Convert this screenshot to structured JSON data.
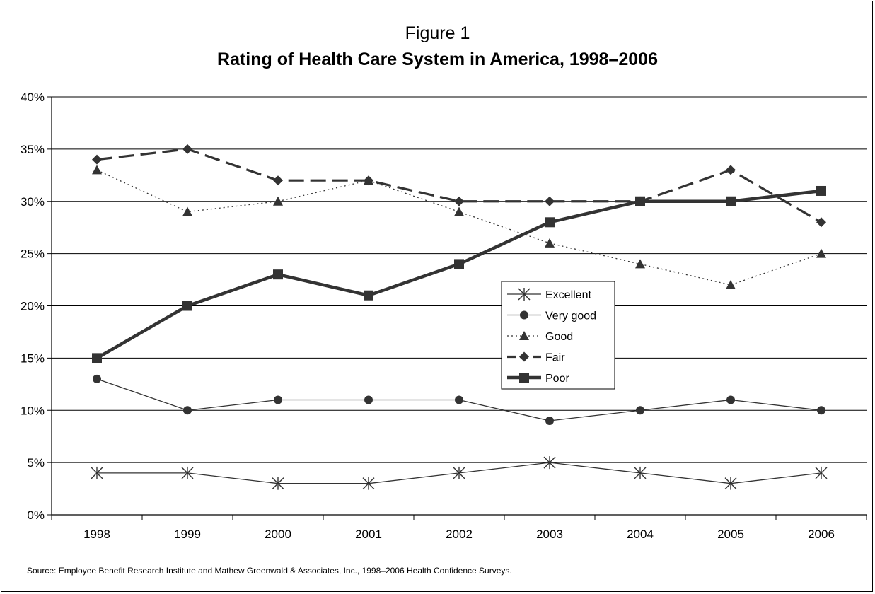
{
  "figure": {
    "number_label": "Figure 1",
    "title": "Rating of Health Care System in America, 1998–2006",
    "source": "Source: Employee Benefit Research Institute and Mathew Greenwald & Associates, Inc., 1998–2006 Health Confidence Surveys."
  },
  "chart_data": {
    "type": "line",
    "title": "Rating of Health Care System in America, 1998–2006",
    "x": [
      "1998",
      "1999",
      "2000",
      "2001",
      "2002",
      "2003",
      "2004",
      "2005",
      "2006"
    ],
    "ylim": [
      0,
      40
    ],
    "y_ticks": [
      "0%",
      "5%",
      "10%",
      "15%",
      "20%",
      "25%",
      "30%",
      "35%",
      "40%"
    ],
    "y_unit": "%",
    "grid": "horizontal",
    "legend_position": "center-right",
    "series": [
      {
        "name": "Excellent",
        "values": [
          4,
          4,
          3,
          3,
          4,
          5,
          4,
          3,
          4
        ],
        "marker": "asterisk",
        "line": "thin-solid",
        "color": "#333333"
      },
      {
        "name": "Very good",
        "values": [
          13,
          10,
          11,
          11,
          11,
          9,
          10,
          11,
          10
        ],
        "marker": "circle",
        "line": "thin-solid",
        "color": "#333333"
      },
      {
        "name": "Good",
        "values": [
          33,
          29,
          30,
          32,
          29,
          26,
          24,
          22,
          25
        ],
        "marker": "triangle",
        "line": "dotted",
        "color": "#333333"
      },
      {
        "name": "Fair",
        "values": [
          34,
          35,
          32,
          32,
          30,
          30,
          30,
          33,
          28
        ],
        "marker": "diamond",
        "line": "dashed",
        "color": "#333333"
      },
      {
        "name": "Poor",
        "values": [
          15,
          20,
          23,
          21,
          24,
          28,
          30,
          30,
          31
        ],
        "marker": "square",
        "line": "thick-solid",
        "color": "#333333"
      }
    ]
  }
}
